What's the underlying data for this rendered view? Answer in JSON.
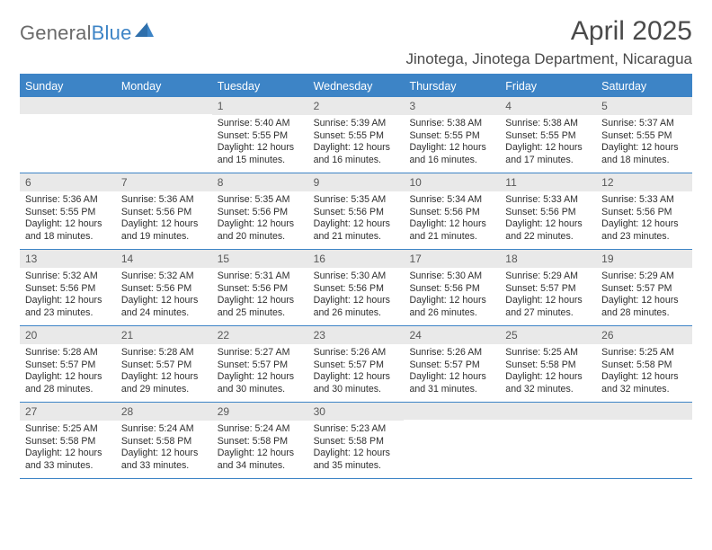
{
  "logo": {
    "text_left": "General",
    "text_right": "Blue"
  },
  "title": "April 2025",
  "location": "Jinotega, Jinotega Department, Nicaragua",
  "colors": {
    "accent": "#3d84c6",
    "header_text": "#ffffff",
    "daynum_bg": "#e9e9e9",
    "body_text": "#2e2e2e",
    "logo_gray": "#6a6a6a"
  },
  "day_headers": [
    "Sunday",
    "Monday",
    "Tuesday",
    "Wednesday",
    "Thursday",
    "Friday",
    "Saturday"
  ],
  "weeks": [
    [
      {
        "n": "",
        "sunrise": "",
        "sunset": "",
        "daylight": ""
      },
      {
        "n": "",
        "sunrise": "",
        "sunset": "",
        "daylight": ""
      },
      {
        "n": "1",
        "sunrise": "Sunrise: 5:40 AM",
        "sunset": "Sunset: 5:55 PM",
        "daylight": "Daylight: 12 hours and 15 minutes."
      },
      {
        "n": "2",
        "sunrise": "Sunrise: 5:39 AM",
        "sunset": "Sunset: 5:55 PM",
        "daylight": "Daylight: 12 hours and 16 minutes."
      },
      {
        "n": "3",
        "sunrise": "Sunrise: 5:38 AM",
        "sunset": "Sunset: 5:55 PM",
        "daylight": "Daylight: 12 hours and 16 minutes."
      },
      {
        "n": "4",
        "sunrise": "Sunrise: 5:38 AM",
        "sunset": "Sunset: 5:55 PM",
        "daylight": "Daylight: 12 hours and 17 minutes."
      },
      {
        "n": "5",
        "sunrise": "Sunrise: 5:37 AM",
        "sunset": "Sunset: 5:55 PM",
        "daylight": "Daylight: 12 hours and 18 minutes."
      }
    ],
    [
      {
        "n": "6",
        "sunrise": "Sunrise: 5:36 AM",
        "sunset": "Sunset: 5:55 PM",
        "daylight": "Daylight: 12 hours and 18 minutes."
      },
      {
        "n": "7",
        "sunrise": "Sunrise: 5:36 AM",
        "sunset": "Sunset: 5:56 PM",
        "daylight": "Daylight: 12 hours and 19 minutes."
      },
      {
        "n": "8",
        "sunrise": "Sunrise: 5:35 AM",
        "sunset": "Sunset: 5:56 PM",
        "daylight": "Daylight: 12 hours and 20 minutes."
      },
      {
        "n": "9",
        "sunrise": "Sunrise: 5:35 AM",
        "sunset": "Sunset: 5:56 PM",
        "daylight": "Daylight: 12 hours and 21 minutes."
      },
      {
        "n": "10",
        "sunrise": "Sunrise: 5:34 AM",
        "sunset": "Sunset: 5:56 PM",
        "daylight": "Daylight: 12 hours and 21 minutes."
      },
      {
        "n": "11",
        "sunrise": "Sunrise: 5:33 AM",
        "sunset": "Sunset: 5:56 PM",
        "daylight": "Daylight: 12 hours and 22 minutes."
      },
      {
        "n": "12",
        "sunrise": "Sunrise: 5:33 AM",
        "sunset": "Sunset: 5:56 PM",
        "daylight": "Daylight: 12 hours and 23 minutes."
      }
    ],
    [
      {
        "n": "13",
        "sunrise": "Sunrise: 5:32 AM",
        "sunset": "Sunset: 5:56 PM",
        "daylight": "Daylight: 12 hours and 23 minutes."
      },
      {
        "n": "14",
        "sunrise": "Sunrise: 5:32 AM",
        "sunset": "Sunset: 5:56 PM",
        "daylight": "Daylight: 12 hours and 24 minutes."
      },
      {
        "n": "15",
        "sunrise": "Sunrise: 5:31 AM",
        "sunset": "Sunset: 5:56 PM",
        "daylight": "Daylight: 12 hours and 25 minutes."
      },
      {
        "n": "16",
        "sunrise": "Sunrise: 5:30 AM",
        "sunset": "Sunset: 5:56 PM",
        "daylight": "Daylight: 12 hours and 26 minutes."
      },
      {
        "n": "17",
        "sunrise": "Sunrise: 5:30 AM",
        "sunset": "Sunset: 5:56 PM",
        "daylight": "Daylight: 12 hours and 26 minutes."
      },
      {
        "n": "18",
        "sunrise": "Sunrise: 5:29 AM",
        "sunset": "Sunset: 5:57 PM",
        "daylight": "Daylight: 12 hours and 27 minutes."
      },
      {
        "n": "19",
        "sunrise": "Sunrise: 5:29 AM",
        "sunset": "Sunset: 5:57 PM",
        "daylight": "Daylight: 12 hours and 28 minutes."
      }
    ],
    [
      {
        "n": "20",
        "sunrise": "Sunrise: 5:28 AM",
        "sunset": "Sunset: 5:57 PM",
        "daylight": "Daylight: 12 hours and 28 minutes."
      },
      {
        "n": "21",
        "sunrise": "Sunrise: 5:28 AM",
        "sunset": "Sunset: 5:57 PM",
        "daylight": "Daylight: 12 hours and 29 minutes."
      },
      {
        "n": "22",
        "sunrise": "Sunrise: 5:27 AM",
        "sunset": "Sunset: 5:57 PM",
        "daylight": "Daylight: 12 hours and 30 minutes."
      },
      {
        "n": "23",
        "sunrise": "Sunrise: 5:26 AM",
        "sunset": "Sunset: 5:57 PM",
        "daylight": "Daylight: 12 hours and 30 minutes."
      },
      {
        "n": "24",
        "sunrise": "Sunrise: 5:26 AM",
        "sunset": "Sunset: 5:57 PM",
        "daylight": "Daylight: 12 hours and 31 minutes."
      },
      {
        "n": "25",
        "sunrise": "Sunrise: 5:25 AM",
        "sunset": "Sunset: 5:58 PM",
        "daylight": "Daylight: 12 hours and 32 minutes."
      },
      {
        "n": "26",
        "sunrise": "Sunrise: 5:25 AM",
        "sunset": "Sunset: 5:58 PM",
        "daylight": "Daylight: 12 hours and 32 minutes."
      }
    ],
    [
      {
        "n": "27",
        "sunrise": "Sunrise: 5:25 AM",
        "sunset": "Sunset: 5:58 PM",
        "daylight": "Daylight: 12 hours and 33 minutes."
      },
      {
        "n": "28",
        "sunrise": "Sunrise: 5:24 AM",
        "sunset": "Sunset: 5:58 PM",
        "daylight": "Daylight: 12 hours and 33 minutes."
      },
      {
        "n": "29",
        "sunrise": "Sunrise: 5:24 AM",
        "sunset": "Sunset: 5:58 PM",
        "daylight": "Daylight: 12 hours and 34 minutes."
      },
      {
        "n": "30",
        "sunrise": "Sunrise: 5:23 AM",
        "sunset": "Sunset: 5:58 PM",
        "daylight": "Daylight: 12 hours and 35 minutes."
      },
      {
        "n": "",
        "sunrise": "",
        "sunset": "",
        "daylight": ""
      },
      {
        "n": "",
        "sunrise": "",
        "sunset": "",
        "daylight": ""
      },
      {
        "n": "",
        "sunrise": "",
        "sunset": "",
        "daylight": ""
      }
    ]
  ]
}
